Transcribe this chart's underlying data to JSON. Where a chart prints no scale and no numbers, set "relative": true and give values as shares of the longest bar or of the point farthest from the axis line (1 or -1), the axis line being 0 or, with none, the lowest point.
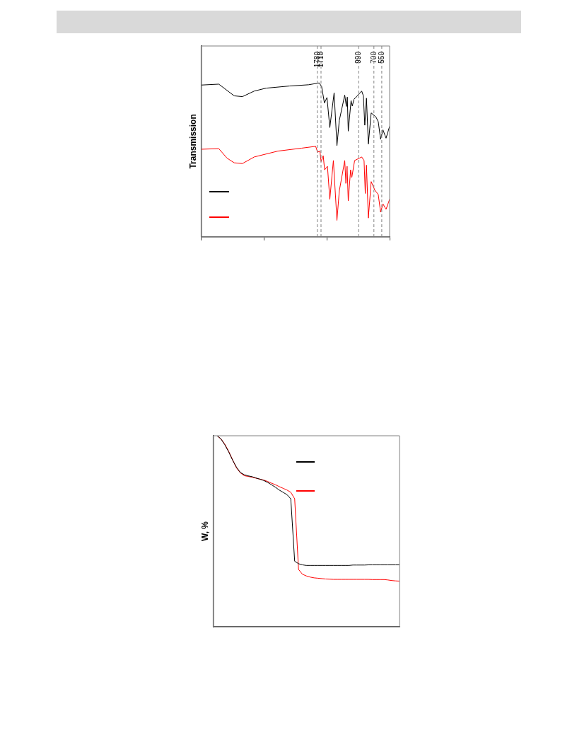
{
  "chart_data": [
    {
      "type": "line",
      "ylabel": "Transmission",
      "relative": true,
      "xlim": [
        4000,
        400
      ],
      "xticks": [
        {
          "value": 4000,
          "label": null
        },
        {
          "value": 2800,
          "label": null
        },
        1780,
        1710,
        {
          "value": 1600,
          "label": null
        },
        990,
        700,
        550,
        {
          "value": 400,
          "label": null
        }
      ],
      "tick_labels": "x",
      "grid": false,
      "marker": "none",
      "ref_lines": [
        {
          "axis": "x",
          "value": 1780,
          "color": "#808080",
          "line_style": "dashed"
        },
        {
          "axis": "x",
          "value": 1710,
          "color": "#808080",
          "line_style": "dashed"
        },
        {
          "axis": "x",
          "value": 990,
          "color": "#808080",
          "line_style": "dashed"
        },
        {
          "axis": "x",
          "value": 700,
          "color": "#808080",
          "line_style": "dashed"
        },
        {
          "axis": "x",
          "value": 550,
          "color": "#808080",
          "line_style": "dashed"
        }
      ],
      "series": [
        {
          "color": "#000000",
          "x": [
            4000,
            3662,
            3368,
            3211,
            2985,
            2759,
            2308,
            1947,
            1744,
            1699,
            1645,
            1596,
            1542,
            1460,
            1406,
            1361,
            1257,
            1226,
            1208,
            1190,
            1136,
            1113,
            1081,
            933,
            901,
            874,
            842,
            806,
            752,
            662,
            617,
            572,
            527,
            468,
            400
          ],
          "values": [
            0.986,
            0.992,
            0.916,
            0.911,
            0.947,
            0.966,
            0.98,
            0.988,
            1.0,
            0.977,
            0.87,
            0.905,
            0.71,
            0.936,
            0.592,
            0.756,
            0.921,
            0.847,
            0.908,
            0.687,
            0.885,
            0.85,
            0.893,
            0.947,
            0.916,
            0.725,
            0.901,
            0.603,
            0.805,
            0.779,
            0.748,
            0.634,
            0.695,
            0.641,
            0.718
          ]
        },
        {
          "color": "#ff0000",
          "x": [
            4000,
            3662,
            3504,
            3368,
            3211,
            2985,
            2534,
            2083,
            1812,
            1776,
            1731,
            1708,
            1668,
            1641,
            1587,
            1542,
            1474,
            1406,
            1361,
            1257,
            1235,
            1212,
            1190,
            1145,
            1122,
            1068,
            978,
            933,
            888,
            865,
            842,
            806,
            752,
            684,
            617,
            572,
            527,
            468,
            400
          ],
          "values": [
            0.569,
            0.573,
            0.511,
            0.481,
            0.476,
            0.519,
            0.557,
            0.576,
            0.588,
            0.55,
            0.557,
            0.489,
            0.527,
            0.435,
            0.458,
            0.244,
            0.496,
            0.107,
            0.298,
            0.496,
            0.347,
            0.458,
            0.234,
            0.435,
            0.386,
            0.496,
            0.511,
            0.519,
            0.496,
            0.282,
            0.466,
            0.122,
            0.359,
            0.305,
            0.275,
            0.16,
            0.214,
            0.179,
            0.244
          ]
        }
      ]
    },
    {
      "type": "line",
      "ylabel": "W, %",
      "relative": true,
      "tick_labels": false,
      "grid": false,
      "marker": "none",
      "categories": [
        null,
        null,
        null,
        null,
        null,
        null,
        null,
        null,
        null,
        null,
        null,
        null,
        null,
        null,
        null,
        null,
        null,
        null,
        null,
        null,
        null,
        null,
        null,
        null,
        null,
        null,
        null,
        null,
        null,
        null,
        null,
        null,
        null,
        null,
        null,
        null,
        null,
        null,
        null,
        null,
        null,
        null,
        null,
        null,
        null,
        null,
        null,
        null,
        null
      ],
      "series": [
        {
          "color": "#000000",
          "values": [
            null,
            1.0,
            0.984,
            0.953,
            0.916,
            0.873,
            0.836,
            0.808,
            0.796,
            0.79,
            0.786,
            0.779,
            0.773,
            0.766,
            0.756,
            0.744,
            0.731,
            0.716,
            0.704,
            0.692,
            0.67,
            0.343,
            0.33,
            0.324,
            0.321,
            0.321,
            0.321,
            0.321,
            0.321,
            0.321,
            0.321,
            0.321,
            0.321,
            0.321,
            0.321,
            0.321,
            0.323,
            0.323,
            0.323,
            0.323,
            0.324,
            0.324,
            0.324,
            0.324,
            0.324,
            0.324,
            0.324,
            0.324,
            0.324
          ]
        },
        {
          "color": "#ff0000",
          "values": [
            null,
            1.0,
            0.984,
            0.956,
            0.919,
            0.875,
            0.832,
            0.806,
            0.791,
            0.787,
            0.783,
            0.778,
            0.773,
            0.768,
            0.761,
            0.752,
            0.744,
            0.734,
            0.725,
            0.716,
            0.704,
            0.67,
            0.3,
            0.275,
            0.266,
            0.26,
            0.256,
            0.254,
            0.252,
            0.25,
            0.249,
            0.248,
            0.248,
            0.248,
            0.248,
            0.248,
            0.248,
            0.248,
            0.248,
            0.248,
            0.248,
            0.247,
            0.247,
            0.247,
            0.247,
            0.245,
            0.242,
            0.24,
            0.239
          ]
        }
      ]
    }
  ]
}
